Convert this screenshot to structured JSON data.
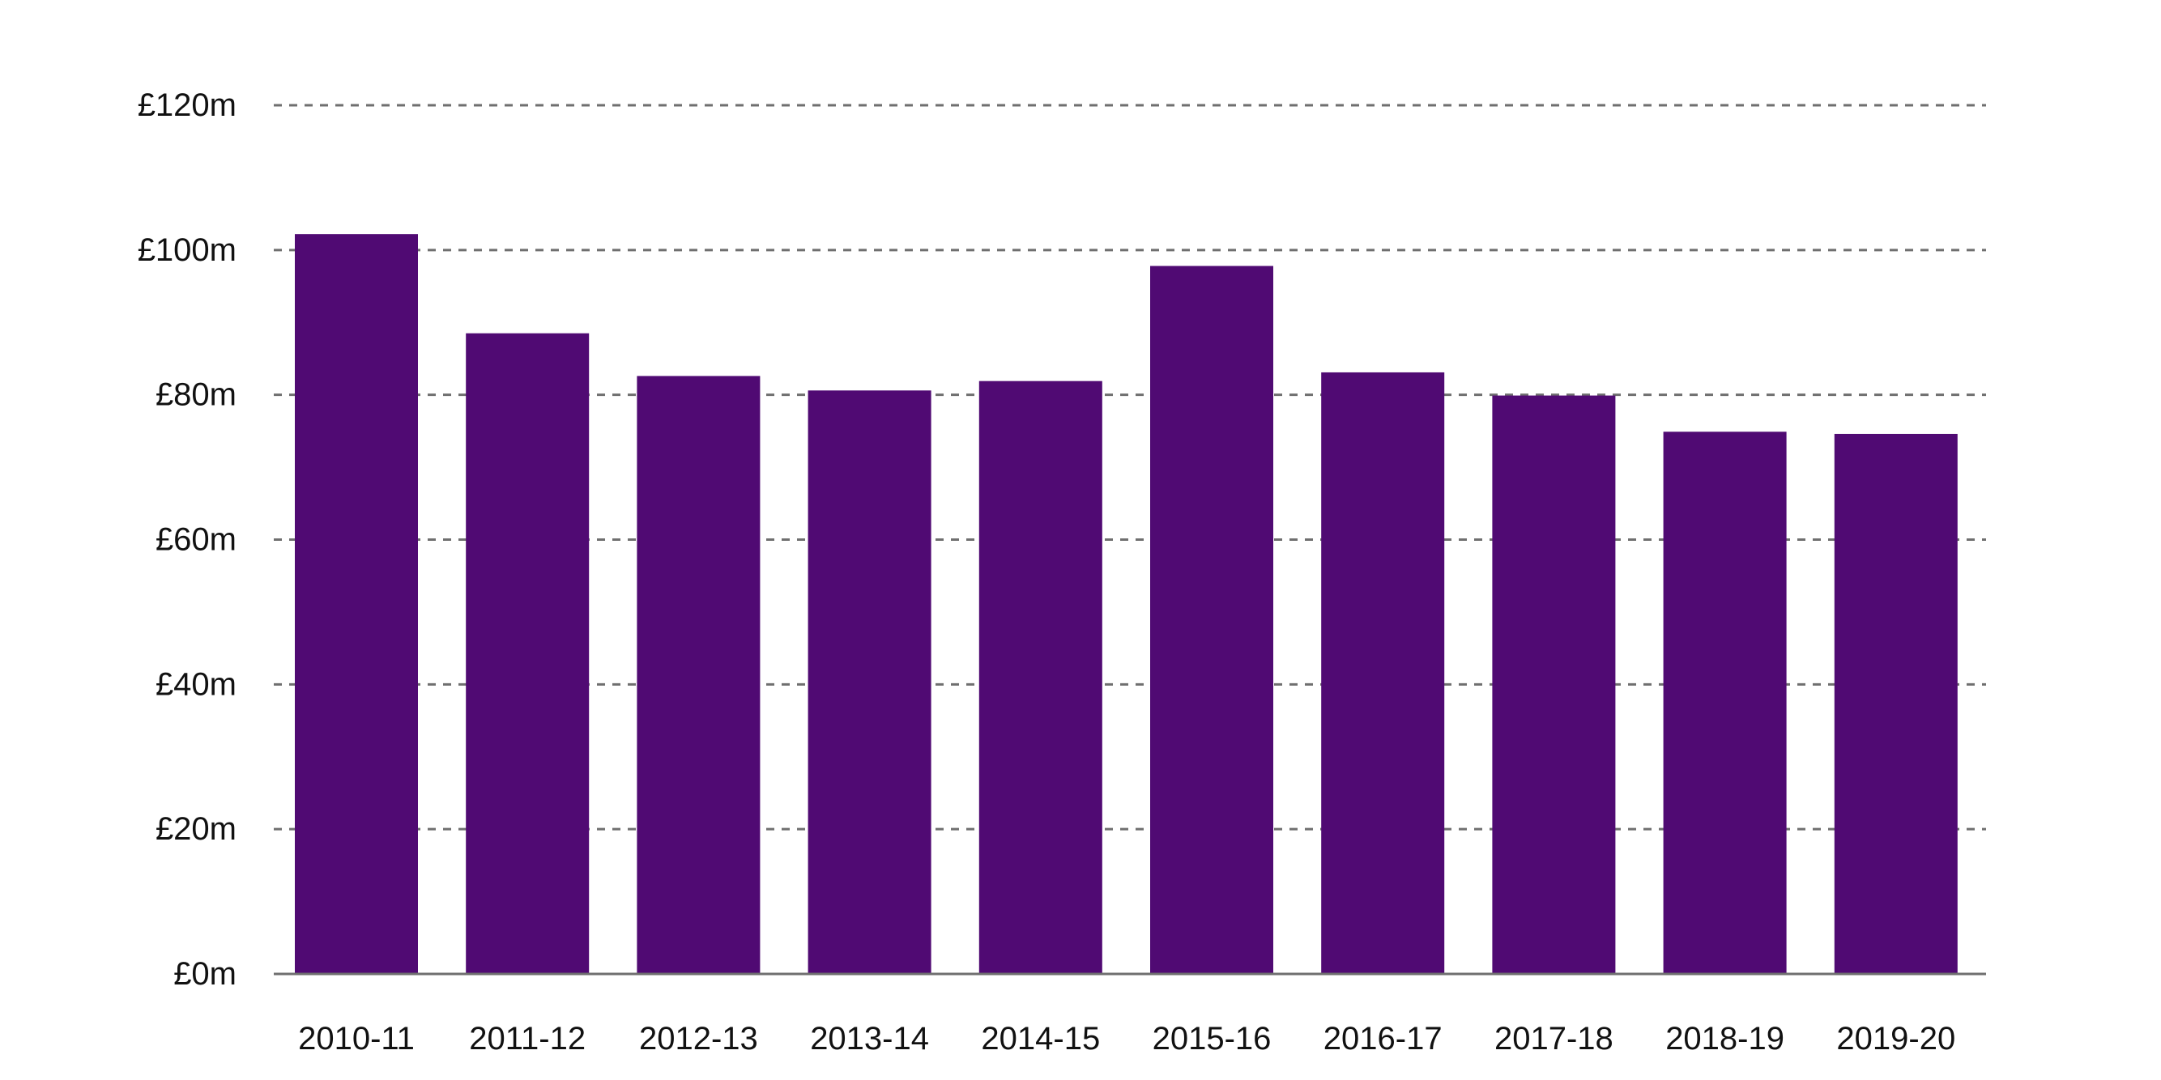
{
  "chart_data": {
    "type": "bar",
    "categories": [
      "2010-11",
      "2011-12",
      "2012-13",
      "2013-14",
      "2014-15",
      "2015-16",
      "2016-17",
      "2017-18",
      "2018-19",
      "2019-20"
    ],
    "values": [
      102.2,
      88.5,
      82.6,
      80.6,
      81.9,
      97.8,
      83.1,
      79.9,
      74.9,
      74.6
    ],
    "ylim": [
      0,
      120
    ],
    "yticks": [
      0,
      20,
      40,
      60,
      80,
      100,
      120
    ],
    "ytick_labels": [
      "£0m",
      "£20m",
      "£40m",
      "£60m",
      "£80m",
      "£100m",
      "£120m"
    ],
    "grid": true,
    "bar_color": "#500a73",
    "grid_color": "#6f6f6f",
    "title": "",
    "xlabel": "",
    "ylabel": ""
  }
}
